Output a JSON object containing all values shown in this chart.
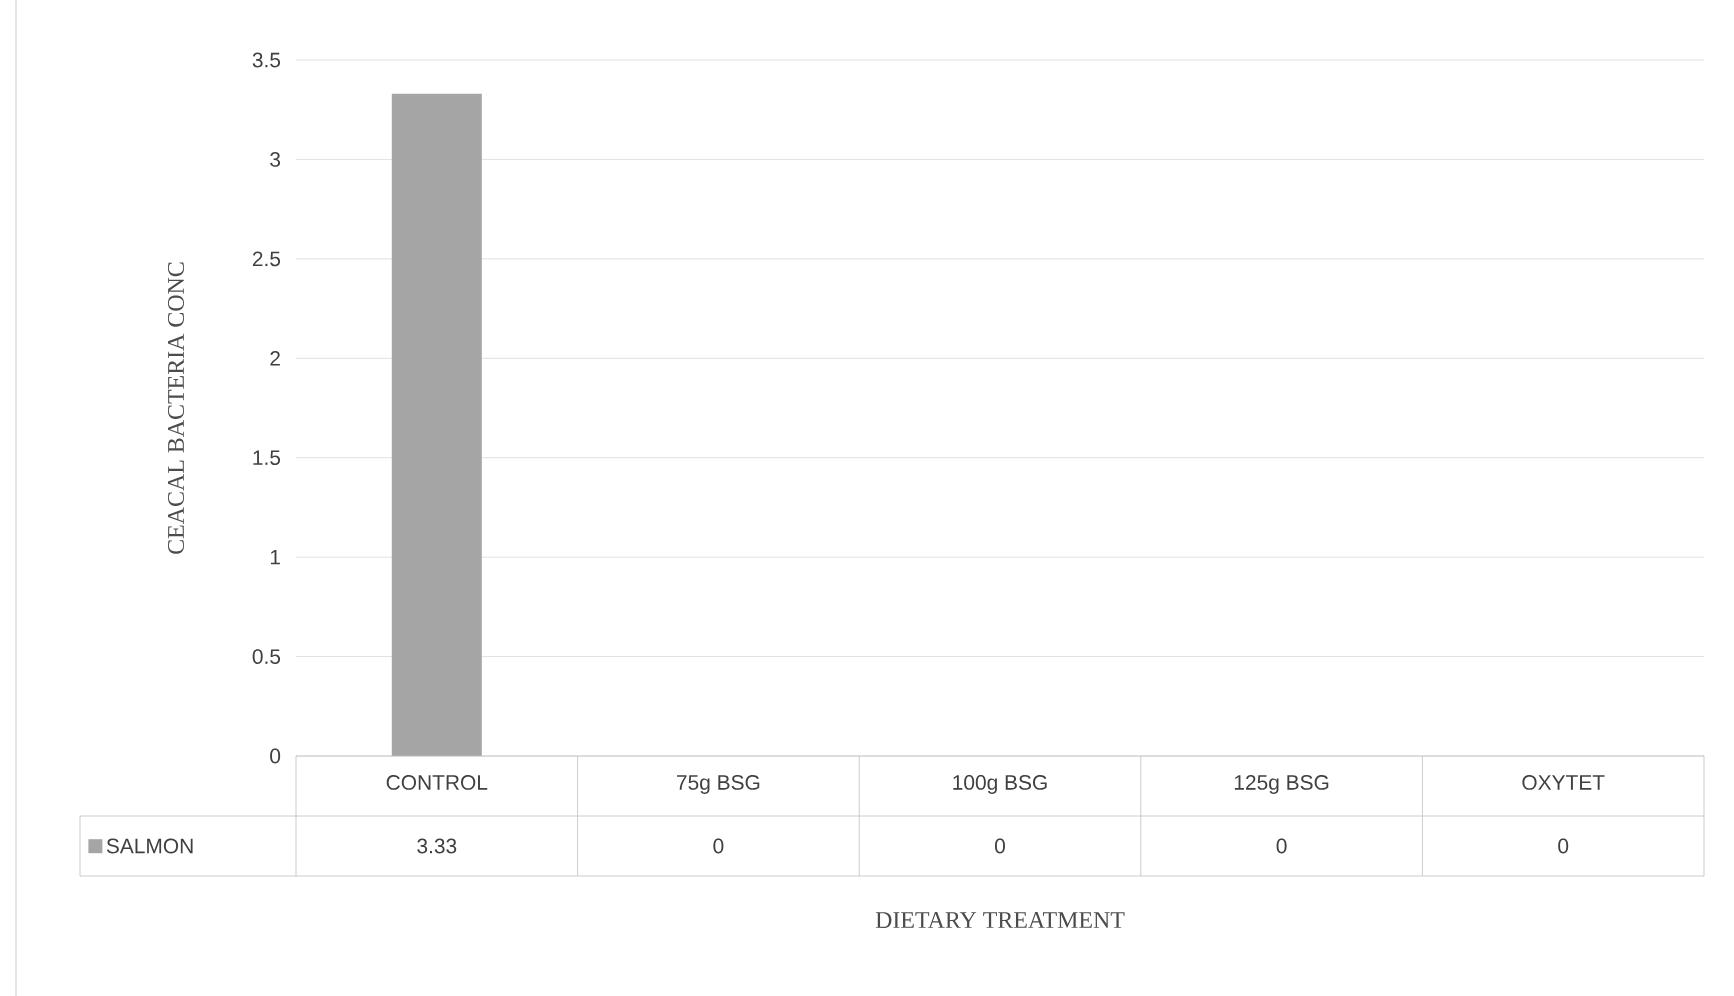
{
  "chart_data": {
    "type": "bar",
    "xlabel": "DIETARY  TREATMENT",
    "ylabel": "CEACAL  BACTERIA  CONC",
    "categories": [
      "CONTROL",
      "75g BSG",
      "100g BSG",
      "125g BSG",
      "OXYTET"
    ],
    "series": [
      {
        "name": "SALMON",
        "color": "#a5a5a5",
        "values": [
          3.33,
          0,
          0,
          0,
          0
        ]
      }
    ],
    "ylim": [
      0,
      3.5
    ],
    "yticks": [
      0,
      0.5,
      1,
      1.5,
      2,
      2.5,
      3,
      3.5
    ],
    "grid": "y",
    "data_labels": true,
    "legend": "bottom"
  }
}
